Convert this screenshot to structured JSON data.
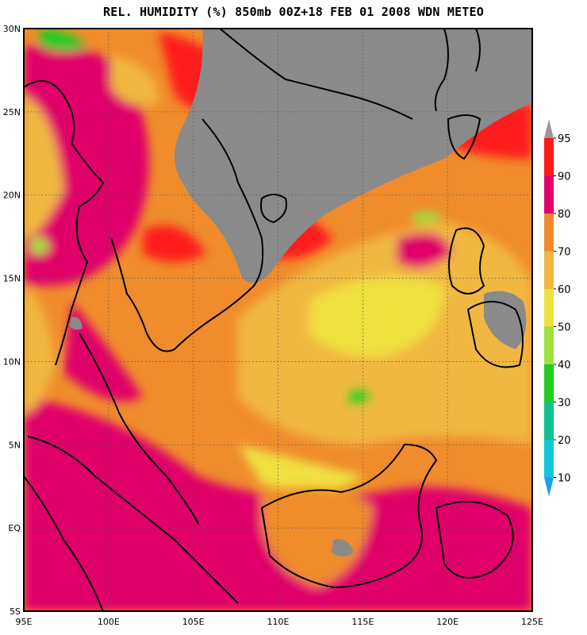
{
  "title": "REL. HUMIDITY (%) 850mb 00Z+18 FEB 01 2008 WDN METEO",
  "lat_labels": [
    "30N",
    "25N",
    "20N",
    "15N",
    "10N",
    "5N",
    "EQ",
    "5S"
  ],
  "lon_labels": [
    "95E",
    "100E",
    "105E",
    "110E",
    "115E",
    "120E",
    "125E"
  ],
  "colorbar": {
    "levels": [
      "95",
      "90",
      "80",
      "70",
      "60",
      "50",
      "40",
      "30",
      "20",
      "10"
    ],
    "colors": [
      "#9a9a9a",
      "#ff1a1a",
      "#e0006a",
      "#f08c2c",
      "#f0b840",
      "#f0e040",
      "#a0e040",
      "#20cc20",
      "#10c090",
      "#10c8d8",
      "#1aa0f0"
    ]
  },
  "colors": {
    "land_frame": "#000000",
    "no_data_gray": "#8a8a8a",
    "grid": "#555555"
  }
}
